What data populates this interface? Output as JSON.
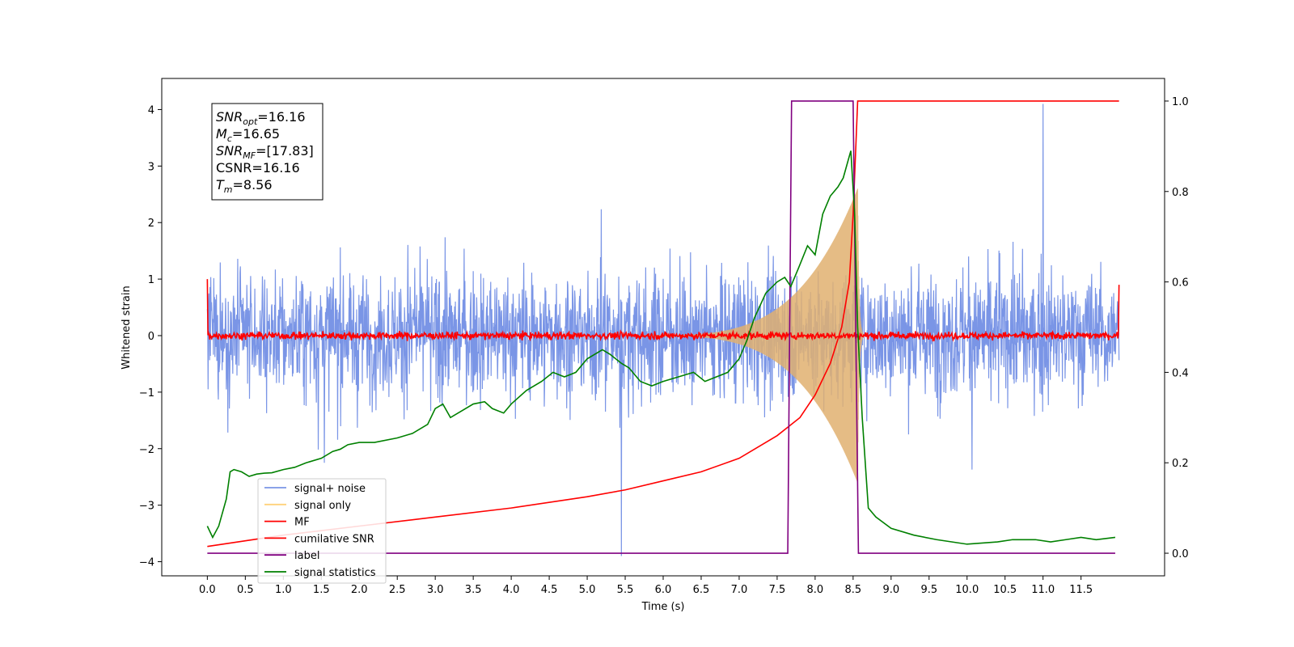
{
  "chart_data": {
    "type": "line",
    "xlabel": "Time (s)",
    "ylabel": "Whitened strain",
    "xlim": [
      -0.6,
      12.6
    ],
    "ylim": [
      -4.25,
      4.55
    ],
    "y2lim": [
      -0.05,
      1.05
    ],
    "x_ticks": [
      "0.0",
      "0.5",
      "1.0",
      "1.5",
      "2.0",
      "2.5",
      "3.0",
      "3.5",
      "4.0",
      "4.5",
      "5.0",
      "5.5",
      "6.0",
      "6.5",
      "7.0",
      "7.5",
      "8.0",
      "8.5",
      "9.0",
      "9.5",
      "10.0",
      "10.5",
      "11.0",
      "11.5"
    ],
    "y_ticks": [
      "−4",
      "−3",
      "−2",
      "−1",
      "0",
      "1",
      "2",
      "3",
      "4"
    ],
    "y2_ticks": [
      "0.0",
      "0.2",
      "0.4",
      "0.6",
      "0.8",
      "1.0"
    ],
    "stats_box": {
      "lines": [
        {
          "label": "SNR",
          "sub": "opt",
          "value": "=16.16"
        },
        {
          "label": "M",
          "sub": "c",
          "value": "=16.65"
        },
        {
          "label": "SNR",
          "sub": "MF",
          "value": "=[17.83]"
        },
        {
          "label": "CSNR",
          "sub": "",
          "value": "=16.16"
        },
        {
          "label": "T",
          "sub": "m",
          "value": "=8.56"
        }
      ]
    },
    "legend": {
      "position": "lower-left",
      "entries": [
        {
          "name": "signal+ noise",
          "color": "#7a95e6"
        },
        {
          "name": "signal only",
          "color": "#ffd27a"
        },
        {
          "name": "MF",
          "color": "#ff0000"
        },
        {
          "name": "cumilative SNR",
          "color": "#ff0000"
        },
        {
          "name": "label",
          "color": "#800080"
        },
        {
          "name": "signal statistics",
          "color": "#008000"
        }
      ]
    },
    "series": [
      {
        "name": "signal+ noise",
        "axis": "left",
        "color": "#7a95e6",
        "description_values": {
          "x_range": [
            0.0,
            12.0
          ],
          "typical_range": [
            -2.5,
            2.5
          ],
          "peak_max": 4.1,
          "peak_max_x": 11.0,
          "peak_min": -3.9,
          "peak_min_x": 5.45
        }
      },
      {
        "name": "signal only",
        "axis": "left",
        "color": "#e0b070",
        "description_values": {
          "chirp_start": 5.5,
          "merger": 8.56,
          "max_amplitude": 2.6,
          "ringdown_end": 8.65
        }
      },
      {
        "name": "MF",
        "axis": "left",
        "color": "#ff0000",
        "description_values": {
          "x_range": [
            0.0,
            12.0
          ],
          "start_value": 1.0,
          "baseline": 0.0,
          "end_value": 0.9
        }
      },
      {
        "name": "cumilative SNR",
        "axis": "right",
        "color": "#ff0000",
        "x": [
          0.0,
          1.0,
          2.0,
          3.0,
          4.0,
          5.0,
          5.5,
          6.0,
          6.5,
          7.0,
          7.5,
          7.8,
          8.0,
          8.2,
          8.35,
          8.45,
          8.5,
          8.56,
          9.0,
          10.0,
          11.0,
          12.0
        ],
        "y": [
          0.015,
          0.04,
          0.06,
          0.08,
          0.1,
          0.125,
          0.14,
          0.16,
          0.18,
          0.21,
          0.26,
          0.3,
          0.35,
          0.42,
          0.5,
          0.6,
          0.75,
          1.0,
          1.0,
          1.0,
          1.0,
          1.0
        ]
      },
      {
        "name": "label",
        "axis": "right",
        "color": "#800080",
        "x": [
          0.0,
          7.64,
          7.69,
          8.5,
          8.57,
          11.95
        ],
        "y": [
          0.0,
          0.0,
          1.0,
          1.0,
          0.0,
          0.0
        ]
      },
      {
        "name": "signal statistics",
        "axis": "right",
        "color": "#008000",
        "x": [
          0.0,
          0.07,
          0.15,
          0.25,
          0.3,
          0.35,
          0.45,
          0.55,
          0.65,
          0.75,
          0.85,
          1.0,
          1.15,
          1.3,
          1.5,
          1.65,
          1.75,
          1.85,
          2.0,
          2.2,
          2.5,
          2.7,
          2.9,
          3.0,
          3.1,
          3.2,
          3.35,
          3.5,
          3.65,
          3.75,
          3.9,
          4.0,
          4.2,
          4.4,
          4.55,
          4.7,
          4.85,
          5.0,
          5.2,
          5.3,
          5.45,
          5.55,
          5.7,
          5.85,
          6.0,
          6.2,
          6.4,
          6.55,
          6.7,
          6.85,
          7.0,
          7.1,
          7.2,
          7.35,
          7.5,
          7.6,
          7.68,
          7.78,
          7.9,
          8.0,
          8.1,
          8.2,
          8.3,
          8.37,
          8.42,
          8.47,
          8.52,
          8.56,
          8.62,
          8.7,
          8.8,
          9.0,
          9.3,
          9.6,
          10.0,
          10.4,
          10.6,
          10.9,
          11.1,
          11.3,
          11.5,
          11.7,
          11.95
        ],
        "y": [
          0.06,
          0.035,
          0.06,
          0.12,
          0.18,
          0.185,
          0.18,
          0.17,
          0.175,
          0.177,
          0.178,
          0.185,
          0.19,
          0.2,
          0.21,
          0.225,
          0.23,
          0.24,
          0.245,
          0.245,
          0.255,
          0.265,
          0.285,
          0.32,
          0.33,
          0.3,
          0.315,
          0.33,
          0.335,
          0.32,
          0.31,
          0.33,
          0.36,
          0.38,
          0.4,
          0.39,
          0.4,
          0.43,
          0.45,
          0.44,
          0.42,
          0.41,
          0.38,
          0.37,
          0.38,
          0.39,
          0.4,
          0.38,
          0.39,
          0.4,
          0.43,
          0.47,
          0.52,
          0.575,
          0.6,
          0.61,
          0.59,
          0.63,
          0.68,
          0.66,
          0.75,
          0.79,
          0.81,
          0.83,
          0.86,
          0.89,
          0.75,
          0.5,
          0.3,
          0.1,
          0.08,
          0.055,
          0.04,
          0.03,
          0.02,
          0.025,
          0.03,
          0.03,
          0.025,
          0.03,
          0.035,
          0.03,
          0.035
        ]
      }
    ]
  }
}
